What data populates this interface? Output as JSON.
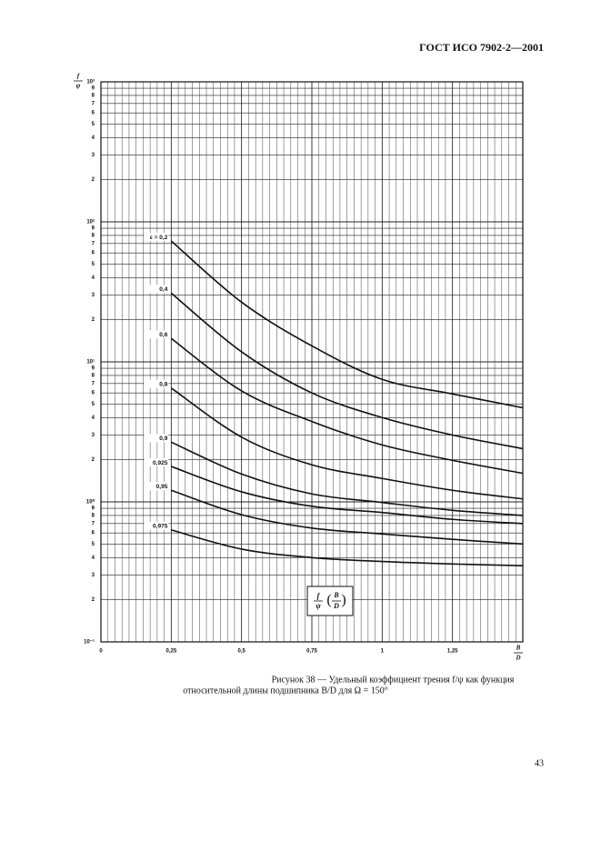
{
  "header": "ГОСТ ИСО 7902-2—2001",
  "chart_data": {
    "type": "line",
    "y_label": {
      "numerator": "f",
      "denominator": "ψ"
    },
    "x_label": {
      "numerator": "B",
      "denominator": "D"
    },
    "annotation": {
      "left": "f",
      "left_under": "ψ",
      "right": "B",
      "right_under": "D"
    },
    "log_y": true,
    "grid": true,
    "xlim": [
      0,
      1.5
    ],
    "xticks": [
      0,
      {
        "value": 0.25,
        "label": "0,25"
      },
      {
        "value": 0.5,
        "label": "0,5"
      },
      {
        "value": 0.75,
        "label": "0,75"
      },
      1,
      {
        "value": 1.25,
        "label": "1,25"
      }
    ],
    "ylim": [
      0.1,
      1000
    ],
    "yticks": [
      {
        "value": 0.1,
        "label": "10⁻¹"
      },
      {
        "value": 0.2,
        "label": "2"
      },
      {
        "value": 0.3,
        "label": "3"
      },
      {
        "value": 0.4,
        "label": "4"
      },
      {
        "value": 0.5,
        "label": "5"
      },
      {
        "value": 0.6,
        "label": "6"
      },
      {
        "value": 0.7,
        "label": "7"
      },
      {
        "value": 0.8,
        "label": "8"
      },
      {
        "value": 0.9,
        "label": "9"
      },
      {
        "value": 1,
        "label": "10⁰"
      },
      2,
      3,
      4,
      5,
      6,
      7,
      8,
      9,
      {
        "value": 10,
        "label": "10¹"
      },
      {
        "value": 20,
        "label": "2"
      },
      {
        "value": 30,
        "label": "3"
      },
      {
        "value": 40,
        "label": "4"
      },
      {
        "value": 50,
        "label": "5"
      },
      {
        "value": 60,
        "label": "6"
      },
      {
        "value": 70,
        "label": "7"
      },
      {
        "value": 80,
        "label": "8"
      },
      {
        "value": 90,
        "label": "9"
      },
      {
        "value": 100,
        "label": "10²"
      },
      {
        "value": 200,
        "label": "2"
      },
      {
        "value": 300,
        "label": "3"
      },
      {
        "value": 400,
        "label": "4"
      },
      {
        "value": 500,
        "label": "5"
      },
      {
        "value": 600,
        "label": "6"
      },
      {
        "value": 700,
        "label": "7"
      },
      {
        "value": 800,
        "label": "8"
      },
      {
        "value": 900,
        "label": "9"
      },
      {
        "value": 1000,
        "label": "10³"
      }
    ],
    "x": [
      0.25,
      0.5,
      0.75,
      1,
      1.25,
      1.5
    ],
    "series": [
      {
        "name": "ε = 0,2",
        "color": "#111111",
        "values": [
          73,
          26.7,
          13,
          7.5,
          5.9,
          4.7
        ]
      },
      {
        "name": "0,4",
        "color": "#111111",
        "values": [
          31,
          11.8,
          6.0,
          4.0,
          3.0,
          2.4
        ]
      },
      {
        "name": "0,6",
        "color": "#111111",
        "values": [
          14.7,
          6.2,
          3.75,
          2.55,
          1.98,
          1.6
        ]
      },
      {
        "name": "0,8",
        "color": "#111111",
        "values": [
          6.5,
          2.9,
          1.84,
          1.47,
          1.21,
          1.05
        ]
      },
      {
        "name": "0,9",
        "color": "#111111",
        "values": [
          2.67,
          1.58,
          1.14,
          0.99,
          0.87,
          0.8
        ]
      },
      {
        "name": "0,925",
        "color": "#111111",
        "values": [
          1.79,
          1.18,
          0.93,
          0.84,
          0.75,
          0.7
        ]
      },
      {
        "name": "0,95",
        "color": "#111111",
        "values": [
          1.21,
          0.81,
          0.65,
          0.59,
          0.54,
          0.5
        ]
      },
      {
        "name": "0,975",
        "color": "#111111",
        "values": [
          0.63,
          0.46,
          0.4,
          0.375,
          0.36,
          0.35
        ]
      }
    ]
  },
  "caption": [
    "Рисунок 38 — Удельный коэффициент трения f/ψ как функция",
    "относительной длины подшипника B/D для Ω = 150°"
  ],
  "page_number": "43"
}
